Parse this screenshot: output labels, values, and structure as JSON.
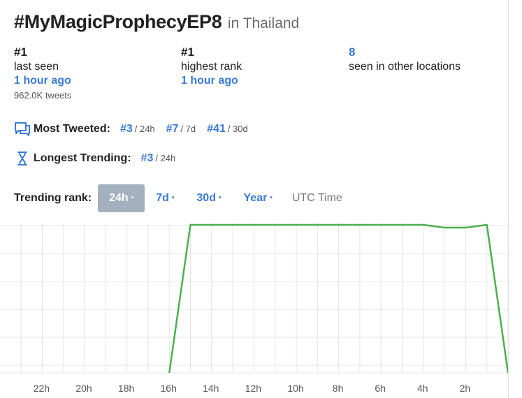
{
  "trend": {
    "hashtag": "#MyMagicProphecyEP8",
    "location": "in Thailand"
  },
  "stats": [
    {
      "rank": "#1",
      "label": "last seen",
      "time": "1 hour ago",
      "tweets": "962.0K tweets"
    },
    {
      "rank": "#1",
      "label": "highest rank",
      "time": "1 hour ago"
    },
    {
      "rank": "8",
      "label": "seen in other locations"
    }
  ],
  "most_tweeted": {
    "label": "Most Tweeted:",
    "items": [
      {
        "value": "#3",
        "period": "/ 24h"
      },
      {
        "value": "#7",
        "period": "/ 7d"
      },
      {
        "value": "#41",
        "period": "/ 30d"
      }
    ]
  },
  "longest_trending": {
    "label": "Longest Trending:",
    "items": [
      {
        "value": "#3",
        "period": "/ 24h"
      }
    ]
  },
  "trending_rank": {
    "label": "Trending rank:",
    "tabs": [
      {
        "label": "24h",
        "dot": "•",
        "active": true
      },
      {
        "label": "7d",
        "dot": "•",
        "active": false
      },
      {
        "label": "30d",
        "dot": "•",
        "active": false
      },
      {
        "label": "Year",
        "dot": "•",
        "active": false
      }
    ],
    "utc_label": "UTC Time"
  },
  "colors": {
    "accent": "#3a7bd5",
    "active_tab": "#a3b0bd",
    "line": "#4caf50",
    "grid": "#e4e4e4"
  },
  "chart_data": {
    "type": "line",
    "x_ticks": [
      "22h",
      "20h",
      "18h",
      "16h",
      "14h",
      "12h",
      "10h",
      "8h",
      "6h",
      "4h",
      "2h"
    ],
    "x_hours_ago": [
      23,
      22.5,
      16,
      15,
      4,
      3,
      2,
      1,
      0
    ],
    "ranks": [
      null,
      null,
      null,
      1,
      1,
      1.1,
      1.1,
      1,
      null
    ],
    "y_range": [
      1,
      6
    ],
    "grid": true,
    "series": [
      {
        "values": [
          {
            "hours_ago": 16,
            "rank": null
          },
          {
            "hours_ago": 15,
            "rank": 1
          },
          {
            "hours_ago": 4,
            "rank": 1
          },
          {
            "hours_ago": 3,
            "rank": 1.1
          },
          {
            "hours_ago": 2,
            "rank": 1.1
          },
          {
            "hours_ago": 1,
            "rank": 1
          },
          {
            "hours_ago": 0,
            "rank": null
          }
        ]
      }
    ]
  }
}
